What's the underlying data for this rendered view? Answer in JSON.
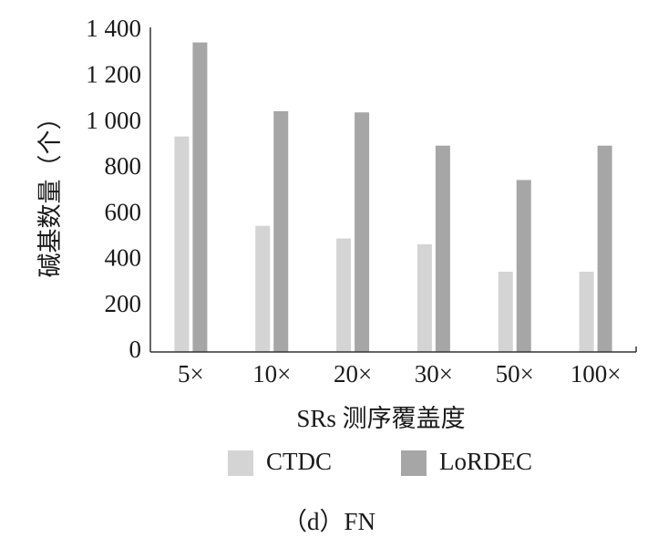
{
  "chart_data": {
    "type": "bar",
    "caption": "（d）FN",
    "xlabel": "SRs 测序覆盖度",
    "ylabel": "碱基数量（个）",
    "categories": [
      "5×",
      "10×",
      "20×",
      "30×",
      "50×",
      "100×"
    ],
    "series": [
      {
        "name": "CTDC",
        "color": "#d4d4d4",
        "values": [
          940,
          550,
          495,
          470,
          350,
          350
        ]
      },
      {
        "name": "LoRDEC",
        "color": "#a6a6a6",
        "values": [
          1350,
          1050,
          1045,
          900,
          750,
          900
        ]
      }
    ],
    "ylim": [
      0,
      1400
    ],
    "yticks": [
      0,
      200,
      400,
      600,
      800,
      {
        "value": 1000,
        "label": "1 000"
      },
      {
        "value": 1200,
        "label": "1 200"
      },
      {
        "value": 1400,
        "label": "1 400"
      }
    ],
    "grid": false,
    "legend": "bottom"
  }
}
